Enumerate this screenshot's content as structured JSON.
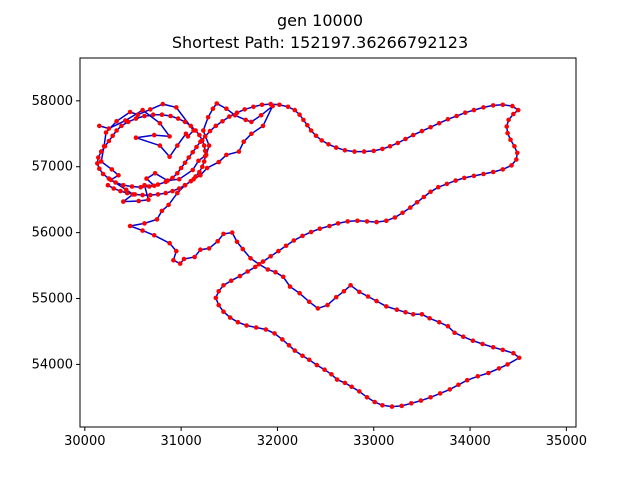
{
  "chart_data": {
    "type": "scatter",
    "title": "gen 10000",
    "subtitle": "Shortest Path: 152197.36266792123",
    "xlabel": "",
    "ylabel": "",
    "xlim": [
      29950,
      35100
    ],
    "ylim": [
      53050,
      58650
    ],
    "xticks": [
      30000,
      31000,
      32000,
      33000,
      34000,
      35000
    ],
    "yticks": [
      54000,
      55000,
      56000,
      57000,
      58000
    ],
    "grid": false,
    "legend": "none",
    "colors": {
      "path": "#0000cc",
      "cities": "#ff0000",
      "axes": "#000000"
    },
    "series": [
      {
        "type": "line+markers",
        "points": [
          [
            30150,
            57620
          ],
          [
            30250,
            57580
          ],
          [
            30420,
            57700
          ],
          [
            30600,
            57860
          ],
          [
            30780,
            57660
          ],
          [
            30880,
            57460
          ],
          [
            30720,
            57480
          ],
          [
            30530,
            57440
          ],
          [
            30780,
            57320
          ],
          [
            30880,
            57150
          ],
          [
            30960,
            57320
          ],
          [
            31050,
            57500
          ],
          [
            31070,
            57460
          ],
          [
            31130,
            57550
          ],
          [
            30950,
            57900
          ],
          [
            30810,
            57950
          ],
          [
            30680,
            57870
          ],
          [
            30550,
            57790
          ],
          [
            30470,
            57830
          ],
          [
            30330,
            57690
          ],
          [
            30220,
            57520
          ],
          [
            30200,
            57310
          ],
          [
            30170,
            57080
          ],
          [
            30280,
            56960
          ],
          [
            30350,
            56870
          ],
          [
            30270,
            56800
          ],
          [
            30430,
            56650
          ],
          [
            30500,
            56580
          ],
          [
            30400,
            56470
          ],
          [
            30560,
            56480
          ],
          [
            30660,
            56500
          ],
          [
            30620,
            56720
          ],
          [
            30720,
            56710
          ],
          [
            30640,
            56820
          ],
          [
            30730,
            56900
          ],
          [
            30860,
            56790
          ],
          [
            30980,
            56810
          ],
          [
            31120,
            56950
          ],
          [
            31180,
            57090
          ],
          [
            31260,
            57180
          ],
          [
            31290,
            57320
          ],
          [
            31230,
            57550
          ],
          [
            31280,
            57750
          ],
          [
            31330,
            57880
          ],
          [
            31370,
            57960
          ],
          [
            31470,
            57880
          ],
          [
            31560,
            57780
          ],
          [
            31670,
            57710
          ],
          [
            31730,
            57680
          ],
          [
            31830,
            57780
          ],
          [
            31950,
            57920
          ],
          [
            31850,
            57620
          ],
          [
            31730,
            57500
          ],
          [
            31650,
            57380
          ],
          [
            31600,
            57230
          ],
          [
            31470,
            57180
          ],
          [
            31390,
            57070
          ],
          [
            31270,
            56980
          ],
          [
            31200,
            56870
          ],
          [
            31130,
            56810
          ],
          [
            31040,
            56720
          ],
          [
            30960,
            56600
          ],
          [
            30870,
            56420
          ],
          [
            30800,
            56330
          ],
          [
            30750,
            56200
          ],
          [
            30620,
            56140
          ],
          [
            30470,
            56100
          ],
          [
            30600,
            56030
          ],
          [
            30720,
            55960
          ],
          [
            30880,
            55840
          ],
          [
            30950,
            55720
          ],
          [
            30920,
            55580
          ],
          [
            30990,
            55530
          ],
          [
            31030,
            55600
          ],
          [
            31140,
            55630
          ],
          [
            31200,
            55740
          ],
          [
            31290,
            55760
          ],
          [
            31380,
            55870
          ],
          [
            31440,
            55980
          ],
          [
            31530,
            56000
          ],
          [
            31580,
            55860
          ],
          [
            31640,
            55750
          ],
          [
            31720,
            55610
          ],
          [
            31810,
            55520
          ],
          [
            31900,
            55440
          ],
          [
            31980,
            55400
          ],
          [
            32060,
            55330
          ],
          [
            32130,
            55180
          ],
          [
            32230,
            55080
          ],
          [
            32330,
            54950
          ],
          [
            32420,
            54850
          ],
          [
            32520,
            54900
          ],
          [
            32610,
            55020
          ],
          [
            32690,
            55110
          ],
          [
            32760,
            55200
          ],
          [
            32850,
            55100
          ],
          [
            32940,
            55030
          ],
          [
            33030,
            54960
          ],
          [
            33130,
            54880
          ],
          [
            33240,
            54830
          ],
          [
            33330,
            54790
          ],
          [
            33410,
            54760
          ],
          [
            33500,
            54760
          ],
          [
            33580,
            54700
          ],
          [
            33680,
            54640
          ],
          [
            33770,
            54580
          ],
          [
            33840,
            54480
          ],
          [
            33930,
            54420
          ],
          [
            34030,
            54360
          ],
          [
            34130,
            54310
          ],
          [
            34240,
            54260
          ],
          [
            34340,
            54220
          ],
          [
            34450,
            54170
          ],
          [
            34510,
            54100
          ],
          [
            34390,
            54000
          ],
          [
            34300,
            53940
          ],
          [
            34190,
            53870
          ],
          [
            34080,
            53820
          ],
          [
            33970,
            53760
          ],
          [
            33880,
            53690
          ],
          [
            33790,
            53620
          ],
          [
            33690,
            53560
          ],
          [
            33590,
            53500
          ],
          [
            33490,
            53450
          ],
          [
            33390,
            53410
          ],
          [
            33290,
            53370
          ],
          [
            33190,
            53360
          ],
          [
            33090,
            53380
          ],
          [
            33010,
            53430
          ],
          [
            32930,
            53500
          ],
          [
            32850,
            53590
          ],
          [
            32770,
            53660
          ],
          [
            32700,
            53720
          ],
          [
            32620,
            53770
          ],
          [
            32560,
            53850
          ],
          [
            32490,
            53920
          ],
          [
            32410,
            53990
          ],
          [
            32330,
            54070
          ],
          [
            32260,
            54130
          ],
          [
            32180,
            54210
          ],
          [
            32120,
            54290
          ],
          [
            32050,
            54380
          ],
          [
            31970,
            54470
          ],
          [
            31880,
            54530
          ],
          [
            31780,
            54560
          ],
          [
            31680,
            54590
          ],
          [
            31590,
            54640
          ],
          [
            31510,
            54710
          ],
          [
            31440,
            54800
          ],
          [
            31390,
            54900
          ],
          [
            31360,
            55010
          ],
          [
            31390,
            55110
          ],
          [
            31440,
            55200
          ],
          [
            31520,
            55270
          ],
          [
            31610,
            55340
          ],
          [
            31690,
            55410
          ],
          [
            31770,
            55480
          ],
          [
            31850,
            55560
          ],
          [
            31930,
            55640
          ],
          [
            32010,
            55720
          ],
          [
            32090,
            55800
          ],
          [
            32170,
            55880
          ],
          [
            32260,
            55950
          ],
          [
            32350,
            56010
          ],
          [
            32440,
            56060
          ],
          [
            32540,
            56100
          ],
          [
            32630,
            56140
          ],
          [
            32730,
            56170
          ],
          [
            32830,
            56180
          ],
          [
            32930,
            56170
          ],
          [
            33030,
            56160
          ],
          [
            33130,
            56180
          ],
          [
            33220,
            56230
          ],
          [
            33300,
            56300
          ],
          [
            33380,
            56380
          ],
          [
            33450,
            56460
          ],
          [
            33520,
            56540
          ],
          [
            33590,
            56620
          ],
          [
            33670,
            56690
          ],
          [
            33760,
            56740
          ],
          [
            33850,
            56790
          ],
          [
            33940,
            56830
          ],
          [
            34040,
            56860
          ],
          [
            34140,
            56890
          ],
          [
            34240,
            56920
          ],
          [
            34340,
            56960
          ],
          [
            34430,
            57020
          ],
          [
            34480,
            57110
          ],
          [
            34490,
            57210
          ],
          [
            34460,
            57310
          ],
          [
            34420,
            57410
          ],
          [
            34390,
            57510
          ],
          [
            34380,
            57610
          ],
          [
            34400,
            57710
          ],
          [
            34450,
            57800
          ],
          [
            34500,
            57860
          ],
          [
            34440,
            57920
          ],
          [
            34340,
            57940
          ],
          [
            34240,
            57930
          ],
          [
            34140,
            57900
          ],
          [
            34040,
            57860
          ],
          [
            33950,
            57820
          ],
          [
            33860,
            57770
          ],
          [
            33770,
            57720
          ],
          [
            33680,
            57660
          ],
          [
            33590,
            57600
          ],
          [
            33500,
            57540
          ],
          [
            33410,
            57480
          ],
          [
            33330,
            57420
          ],
          [
            33250,
            57360
          ],
          [
            33170,
            57310
          ],
          [
            33090,
            57270
          ],
          [
            33000,
            57240
          ],
          [
            32900,
            57230
          ],
          [
            32800,
            57230
          ],
          [
            32700,
            57250
          ],
          [
            32610,
            57290
          ],
          [
            32530,
            57340
          ],
          [
            32460,
            57400
          ],
          [
            32400,
            57470
          ],
          [
            32350,
            57550
          ],
          [
            32310,
            57630
          ],
          [
            32270,
            57710
          ],
          [
            32230,
            57790
          ],
          [
            32180,
            57860
          ],
          [
            32110,
            57910
          ],
          [
            32020,
            57940
          ],
          [
            31930,
            57950
          ],
          [
            31840,
            57940
          ],
          [
            31750,
            57910
          ],
          [
            31660,
            57870
          ],
          [
            31580,
            57820
          ],
          [
            31500,
            57760
          ],
          [
            31430,
            57690
          ],
          [
            31360,
            57620
          ],
          [
            31300,
            57540
          ],
          [
            31250,
            57460
          ],
          [
            31200,
            57380
          ],
          [
            31160,
            57300
          ],
          [
            31120,
            57220
          ],
          [
            31080,
            57140
          ],
          [
            31040,
            57060
          ],
          [
            31000,
            56980
          ],
          [
            30960,
            56900
          ],
          [
            30910,
            56830
          ],
          [
            30840,
            56770
          ],
          [
            30760,
            56730
          ],
          [
            30670,
            56700
          ],
          [
            30580,
            56690
          ],
          [
            30490,
            56700
          ],
          [
            30400,
            56720
          ],
          [
            30320,
            56760
          ],
          [
            30250,
            56820
          ],
          [
            30190,
            56890
          ],
          [
            30150,
            56970
          ],
          [
            30130,
            57050
          ],
          [
            30140,
            57140
          ],
          [
            30170,
            57230
          ],
          [
            30210,
            57310
          ],
          [
            30250,
            57390
          ],
          [
            30290,
            57470
          ],
          [
            30330,
            57550
          ],
          [
            30380,
            57620
          ],
          [
            30450,
            57680
          ],
          [
            30530,
            57730
          ],
          [
            30620,
            57770
          ],
          [
            30710,
            57790
          ],
          [
            30800,
            57790
          ],
          [
            30890,
            57770
          ],
          [
            30970,
            57730
          ],
          [
            31040,
            57680
          ],
          [
            31100,
            57620
          ],
          [
            31150,
            57550
          ],
          [
            31190,
            57480
          ],
          [
            31220,
            57400
          ],
          [
            31240,
            57320
          ],
          [
            31250,
            57240
          ],
          [
            31250,
            57160
          ],
          [
            31240,
            57080
          ],
          [
            31220,
            57000
          ],
          [
            31190,
            56920
          ],
          [
            31150,
            56850
          ],
          [
            31100,
            56780
          ],
          [
            31040,
            56720
          ],
          [
            30980,
            56670
          ],
          [
            30910,
            56630
          ],
          [
            30840,
            56600
          ],
          [
            30760,
            56580
          ],
          [
            30680,
            56570
          ],
          [
            30600,
            56570
          ],
          [
            30520,
            56580
          ],
          [
            30440,
            56600
          ],
          [
            30370,
            56630
          ],
          [
            30300,
            56670
          ],
          [
            30240,
            56720
          ]
        ]
      }
    ]
  }
}
